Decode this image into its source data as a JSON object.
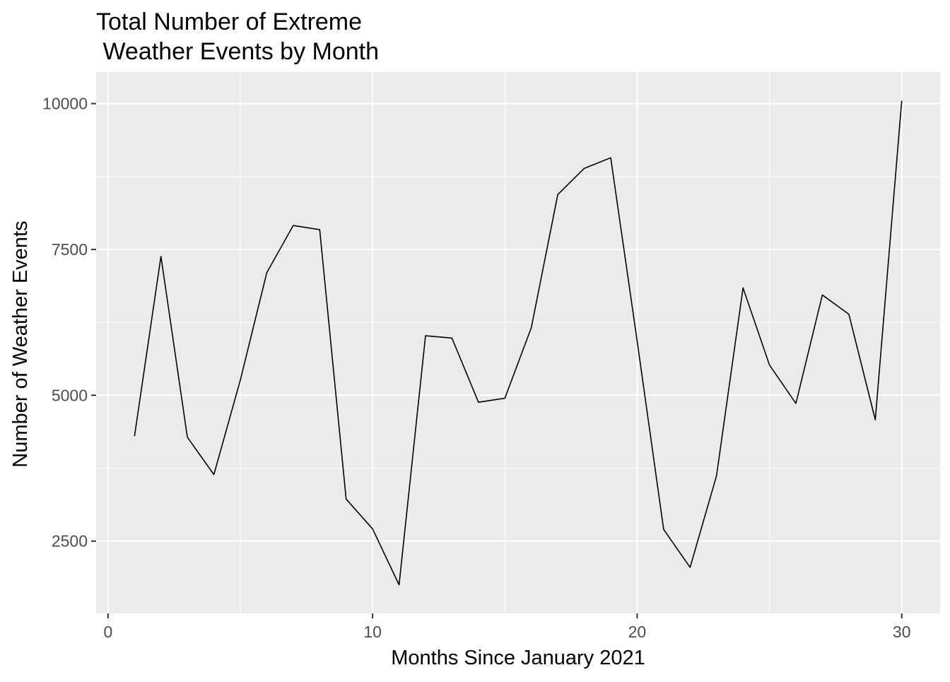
{
  "chart_data": {
    "type": "line",
    "title_line1": "Total Number of Extreme",
    "title_line2": " Weather Events by Month",
    "xlabel": "Months Since January 2021",
    "ylabel": "Number of Weather Events",
    "xlim": [
      -0.45,
      31.45
    ],
    "ylim": [
      1260,
      10540
    ],
    "x_ticks": [
      0,
      10,
      20,
      30
    ],
    "x_tick_labels": [
      "0",
      "10",
      "20",
      "30"
    ],
    "x_minor": [
      5,
      15,
      25
    ],
    "y_ticks": [
      2500,
      5000,
      7500,
      10000
    ],
    "y_tick_labels": [
      "2500",
      "5000",
      "7500",
      "10000"
    ],
    "y_minor": [
      3750,
      6250,
      8750
    ],
    "grid": true,
    "colors": {
      "panel": "#ebebeb",
      "grid": "#ffffff",
      "line": "#000000",
      "tick": "#333333"
    },
    "series": [
      {
        "name": "events",
        "x": [
          1,
          2,
          3,
          4,
          5,
          6,
          7,
          8,
          9,
          10,
          11,
          12,
          13,
          14,
          15,
          16,
          17,
          18,
          19,
          20,
          21,
          22,
          23,
          24,
          25,
          26,
          27,
          28,
          29,
          30
        ],
        "values": [
          4300,
          7380,
          4280,
          3640,
          5260,
          7100,
          7910,
          7840,
          3220,
          2710,
          1750,
          6020,
          5980,
          4880,
          4950,
          6160,
          8440,
          8890,
          9070,
          5930,
          2700,
          2050,
          3620,
          6840,
          5520,
          4860,
          6720,
          6390,
          4580,
          10050
        ]
      }
    ]
  }
}
